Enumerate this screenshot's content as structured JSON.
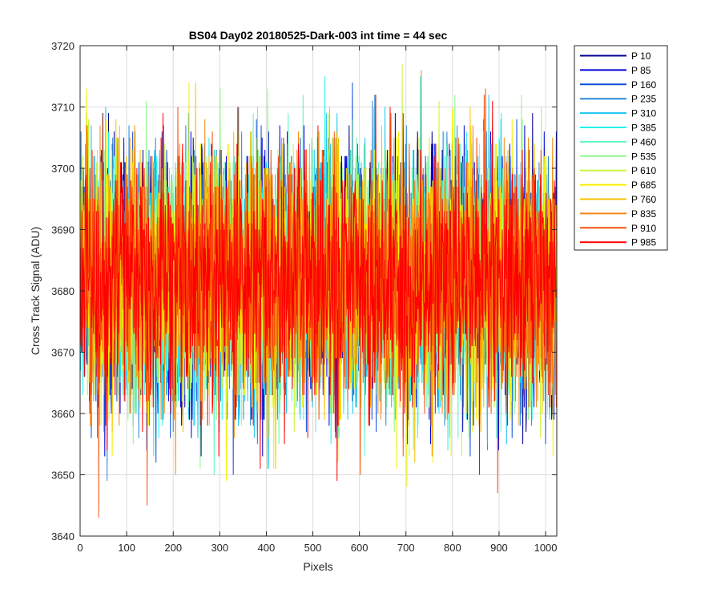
{
  "chart_data": {
    "type": "line",
    "title": "BS04 Day02 20180525-Dark-003 int time = 44 sec",
    "xlabel": "Pixels",
    "ylabel": "Cross Track Signal (ADU)",
    "xlim": [
      0,
      1024
    ],
    "ylim": [
      3640,
      3720
    ],
    "xticks": [
      0,
      100,
      200,
      300,
      400,
      500,
      600,
      700,
      800,
      900,
      1000
    ],
    "yticks": [
      3640,
      3650,
      3660,
      3670,
      3680,
      3690,
      3700,
      3710,
      3720
    ],
    "grid": true,
    "legend_position": "outside-top-right",
    "x_points": 1024,
    "noise_center": 3682,
    "noise_sigma": 10,
    "series": [
      {
        "name": "P 10",
        "color": "#00008f"
      },
      {
        "name": "P 85",
        "color": "#0000d9"
      },
      {
        "name": "P 160",
        "color": "#0e4fd8"
      },
      {
        "name": "P 235",
        "color": "#2a8ad8"
      },
      {
        "name": "P 310",
        "color": "#1cc6f2"
      },
      {
        "name": "P 385",
        "color": "#21f2ef"
      },
      {
        "name": "P 460",
        "color": "#5ff5c3"
      },
      {
        "name": "P 535",
        "color": "#8ff78b"
      },
      {
        "name": "P 610",
        "color": "#c8f53a"
      },
      {
        "name": "P 685",
        "color": "#f7ef00"
      },
      {
        "name": "P 760",
        "color": "#f6c200"
      },
      {
        "name": "P 835",
        "color": "#f58a12"
      },
      {
        "name": "P 910",
        "color": "#f5520d"
      },
      {
        "name": "P 985",
        "color": "#ff0000"
      }
    ]
  }
}
